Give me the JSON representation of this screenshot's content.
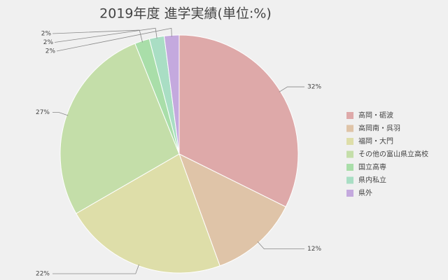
{
  "chart_data": {
    "type": "pie",
    "title": "2019年度 進学実績(単位:%)",
    "categories": [
      "高岡・砺波",
      "高岡南・呉羽",
      "福岡・大門",
      "その他の富山県立高校",
      "国立高専",
      "県内私立",
      "県外"
    ],
    "values": [
      32,
      12,
      22,
      27,
      2,
      2,
      2
    ],
    "value_labels": [
      "32%",
      "12%",
      "22%",
      "27%",
      "2%",
      "2%",
      "2%"
    ],
    "colors": [
      "#dea9a9",
      "#dfc4a8",
      "#dedea9",
      "#c4dea9",
      "#a9dea9",
      "#a9dec4",
      "#c4a9de"
    ],
    "legend": "right"
  }
}
